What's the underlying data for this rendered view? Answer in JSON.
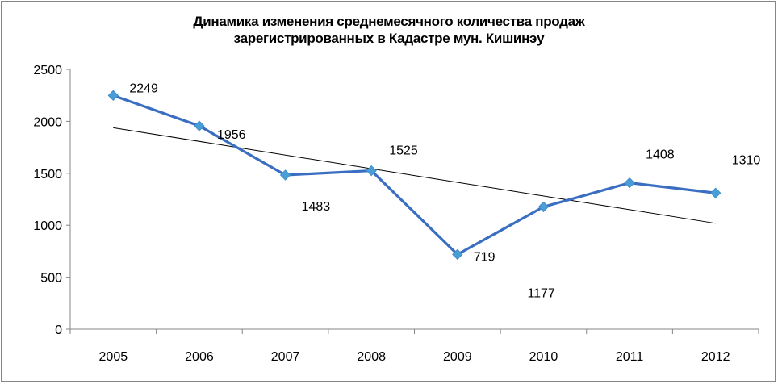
{
  "chart_data": {
    "type": "line",
    "title_lines": [
      "Динамика изменения среднемесячного количества продаж",
      "зарегистрированных в Кадастре мун. Кишинэу"
    ],
    "categories": [
      "2005",
      "2006",
      "2007",
      "2008",
      "2009",
      "2010",
      "2011",
      "2012"
    ],
    "series": [
      {
        "values": [
          2249,
          1956,
          1483,
          1525,
          719,
          1177,
          1408,
          1310
        ],
        "color": "#3a6ec0",
        "marker_color": "#4a9ed8",
        "marker": "diamond"
      }
    ],
    "trendline": {
      "type": "linear",
      "color": "#000000"
    },
    "ylim": [
      0,
      2500
    ],
    "yticks": [
      0,
      500,
      1000,
      1500,
      2000,
      2500
    ],
    "grid": false,
    "data_labels": true,
    "legend": "none"
  }
}
